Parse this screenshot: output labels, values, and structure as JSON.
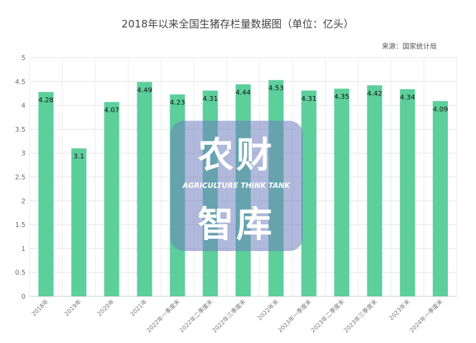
{
  "chart_data": {
    "type": "bar",
    "title": "2018年以来全国生猪存栏量数据图（单位：亿头）",
    "source": "来源：国家统计局",
    "categories": [
      "2018年",
      "2019年",
      "2020年",
      "2021年",
      "2022年一季度末",
      "2022年二季度末",
      "2022年三季度末",
      "2022年末",
      "2023年一季度末",
      "2023年二季度末",
      "2023年三季度末",
      "2023年末",
      "2024年一季度末"
    ],
    "values": [
      4.28,
      3.1,
      4.07,
      4.49,
      4.23,
      4.31,
      4.44,
      4.53,
      4.31,
      4.35,
      4.42,
      4.34,
      4.09
    ],
    "value_labels": [
      "4.28",
      "3.1",
      "4.07",
      "4.49",
      "4.23",
      "4.31",
      "4.44",
      "4.53",
      "4.31",
      "4.35",
      "4.42",
      "4.34",
      "4.09"
    ],
    "ylim": [
      0,
      5
    ],
    "yticks": [
      "0",
      "0.5",
      "1",
      "1.5",
      "2",
      "2.5",
      "3",
      "3.5",
      "4",
      "4.5",
      "5"
    ],
    "grid": true,
    "bar_color": "#5ccf9b"
  },
  "watermark": {
    "line1": "农财",
    "line2": "AGRICULTURE THINK TANK",
    "line3": "智库",
    "color": "#6f7fbf"
  }
}
